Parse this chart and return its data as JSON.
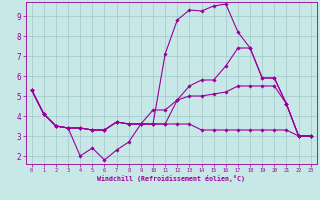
{
  "xlabel": "Windchill (Refroidissement éolien,°C)",
  "background_color": "#c8e8e8",
  "grid_color": "#a0c8c8",
  "line_color": "#990099",
  "xlim": [
    -0.5,
    23.5
  ],
  "ylim": [
    1.6,
    9.7
  ],
  "xticks": [
    0,
    1,
    2,
    3,
    4,
    5,
    6,
    7,
    8,
    9,
    10,
    11,
    12,
    13,
    14,
    15,
    16,
    17,
    18,
    19,
    20,
    21,
    22,
    23
  ],
  "yticks": [
    2,
    3,
    4,
    5,
    6,
    7,
    8,
    9
  ],
  "curves": [
    {
      "x": [
        0,
        1,
        2,
        3,
        4,
        5,
        6,
        7,
        8,
        9,
        10,
        11,
        12,
        13,
        14,
        15,
        16,
        17,
        18,
        19,
        20,
        21,
        22,
        23
      ],
      "y": [
        5.3,
        4.1,
        3.5,
        3.4,
        2.0,
        2.4,
        1.8,
        2.3,
        2.7,
        3.6,
        3.6,
        7.1,
        8.8,
        9.3,
        9.25,
        9.5,
        9.6,
        8.2,
        7.4,
        5.9,
        5.9,
        4.6,
        3.0,
        3.0
      ]
    },
    {
      "x": [
        0,
        1,
        2,
        3,
        4,
        5,
        6,
        7,
        8,
        9,
        10,
        11,
        12,
        13,
        14,
        15,
        16,
        17,
        18,
        19,
        20,
        21,
        22,
        23
      ],
      "y": [
        5.3,
        4.1,
        3.5,
        3.4,
        3.4,
        3.3,
        3.3,
        3.7,
        3.6,
        3.6,
        4.3,
        4.3,
        4.8,
        5.0,
        5.0,
        5.1,
        5.2,
        5.5,
        5.5,
        5.5,
        5.5,
        4.6,
        3.0,
        3.0
      ]
    },
    {
      "x": [
        0,
        1,
        2,
        3,
        4,
        5,
        6,
        7,
        8,
        9,
        10,
        11,
        12,
        13,
        14,
        15,
        16,
        17,
        18,
        19,
        20,
        21,
        22,
        23
      ],
      "y": [
        5.3,
        4.1,
        3.5,
        3.4,
        3.4,
        3.3,
        3.3,
        3.7,
        3.6,
        3.6,
        3.6,
        3.6,
        3.6,
        3.6,
        3.3,
        3.3,
        3.3,
        3.3,
        3.3,
        3.3,
        3.3,
        3.3,
        3.0,
        3.0
      ]
    },
    {
      "x": [
        0,
        1,
        2,
        3,
        4,
        5,
        6,
        7,
        8,
        9,
        10,
        11,
        12,
        13,
        14,
        15,
        16,
        17,
        18,
        19,
        20,
        21,
        22,
        23
      ],
      "y": [
        5.3,
        4.1,
        3.5,
        3.4,
        3.4,
        3.3,
        3.3,
        3.7,
        3.6,
        3.6,
        3.6,
        3.6,
        4.8,
        5.5,
        5.8,
        5.8,
        6.5,
        7.4,
        7.4,
        5.9,
        5.9,
        4.6,
        3.0,
        3.0
      ]
    }
  ]
}
